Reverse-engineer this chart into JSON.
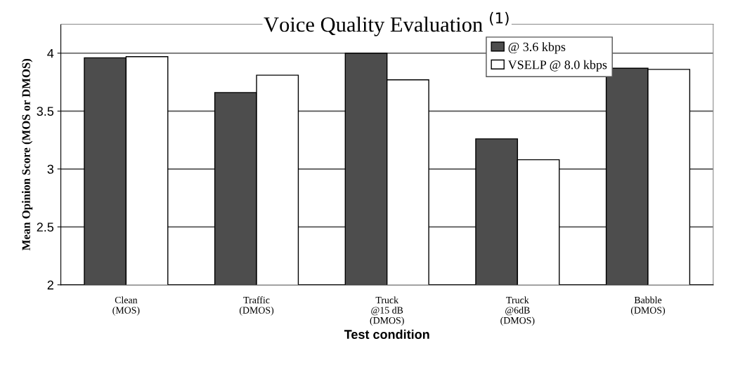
{
  "chart_data": {
    "type": "bar",
    "title": "Voice Quality Evaluation $^{(1)}$",
    "xlabel": "Test condition",
    "ylabel": "Mean Opinion Score (MOS or DMOS)",
    "categories": [
      "Clean\n(MOS)",
      "Traffic\n(DMOS)",
      "Truck\n@15 dB\n(DMOS)",
      "Truck\n@6dB\n(DMOS)",
      "Babble\n(DMOS)"
    ],
    "series": [
      {
        "name": "@ 3.6 kbps",
        "color": "#4d4d4d",
        "values": [
          3.96,
          3.66,
          4.0,
          3.26,
          3.87
        ]
      },
      {
        "name": "VSELP @ 8.0 kbps",
        "color": "#ffffff",
        "values": [
          3.97,
          3.81,
          3.77,
          3.08,
          3.86
        ]
      }
    ],
    "ylim": [
      2,
      4.25
    ],
    "yticks": [
      2,
      2.5,
      3,
      3.5,
      4
    ],
    "grid": "y",
    "legend": "top right"
  }
}
